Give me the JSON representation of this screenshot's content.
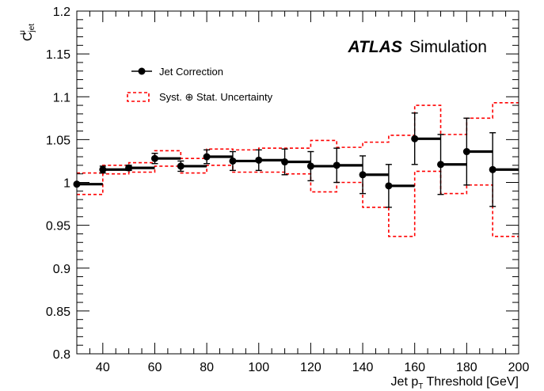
{
  "chart_data": {
    "type": "scatter",
    "xlabel_main": "Jet p",
    "xlabel_sub": "T",
    "xlabel_rest": " Threshold [GeV]",
    "ylabel_main": "C",
    "ylabel_sup": "μ",
    "ylabel_sub": "jet",
    "xlim": [
      30,
      200
    ],
    "ylim": [
      0.8,
      1.2
    ],
    "x_ticks": [
      40,
      60,
      80,
      100,
      120,
      140,
      160,
      180,
      200
    ],
    "x_tick_labels": [
      "40",
      "60",
      "80",
      "100",
      "120",
      "140",
      "160",
      "180",
      "200"
    ],
    "y_ticks": [
      0.8,
      0.85,
      0.9,
      0.95,
      1.0,
      1.05,
      1.1,
      1.15,
      1.2
    ],
    "y_tick_labels": [
      "0.8",
      "0.85",
      "0.9",
      "0.95",
      "1",
      "1.05",
      "1.1",
      "1.15",
      "1.2"
    ],
    "grid": false,
    "legend_position": "top-left",
    "label_bold": "ATLAS",
    "label_text": "Simulation",
    "series": [
      {
        "name": "Jet Correction",
        "color": "#000000",
        "points": [
          {
            "xlow": 30,
            "xhigh": 40,
            "x": 30,
            "y": 0.998,
            "err": 0.0
          },
          {
            "xlow": 40,
            "xhigh": 50,
            "x": 40,
            "y": 1.015,
            "err": 0.004
          },
          {
            "xlow": 50,
            "xhigh": 60,
            "x": 50,
            "y": 1.017,
            "err": 0.003
          },
          {
            "xlow": 60,
            "xhigh": 70,
            "x": 60,
            "y": 1.028,
            "err": 0.006
          },
          {
            "xlow": 70,
            "xhigh": 80,
            "x": 70,
            "y": 1.019,
            "err": 0.006
          },
          {
            "xlow": 80,
            "xhigh": 90,
            "x": 80,
            "y": 1.03,
            "err": 0.008
          },
          {
            "xlow": 90,
            "xhigh": 100,
            "x": 90,
            "y": 1.025,
            "err": 0.011
          },
          {
            "xlow": 100,
            "xhigh": 110,
            "x": 100,
            "y": 1.026,
            "err": 0.012
          },
          {
            "xlow": 110,
            "xhigh": 120,
            "x": 110,
            "y": 1.024,
            "err": 0.015
          },
          {
            "xlow": 120,
            "xhigh": 130,
            "x": 120,
            "y": 1.019,
            "err": 0.017
          },
          {
            "xlow": 130,
            "xhigh": 140,
            "x": 130,
            "y": 1.02,
            "err": 0.02
          },
          {
            "xlow": 140,
            "xhigh": 150,
            "x": 140,
            "y": 1.009,
            "err": 0.022
          },
          {
            "xlow": 150,
            "xhigh": 160,
            "x": 150,
            "y": 0.996,
            "err": 0.025
          },
          {
            "xlow": 160,
            "xhigh": 170,
            "x": 160,
            "y": 1.051,
            "err": 0.03
          },
          {
            "xlow": 170,
            "xhigh": 180,
            "x": 170,
            "y": 1.021,
            "err": 0.035
          },
          {
            "xlow": 180,
            "xhigh": 190,
            "x": 180,
            "y": 1.036,
            "err": 0.039
          },
          {
            "xlow": 190,
            "xhigh": 200,
            "x": 190,
            "y": 1.015,
            "err": 0.043
          }
        ]
      },
      {
        "name": "Syst. ⊕ Stat. Uncertainty",
        "color": "#ff0000",
        "bands": [
          {
            "xlow": 30,
            "xhigh": 40,
            "low": 0.986,
            "high": 1.011
          },
          {
            "xlow": 40,
            "xhigh": 50,
            "low": 1.01,
            "high": 1.02
          },
          {
            "xlow": 50,
            "xhigh": 60,
            "low": 1.012,
            "high": 1.023
          },
          {
            "xlow": 60,
            "xhigh": 70,
            "low": 1.019,
            "high": 1.037
          },
          {
            "xlow": 70,
            "xhigh": 80,
            "low": 1.011,
            "high": 1.028
          },
          {
            "xlow": 80,
            "xhigh": 90,
            "low": 1.02,
            "high": 1.039
          },
          {
            "xlow": 90,
            "xhigh": 100,
            "low": 1.012,
            "high": 1.038
          },
          {
            "xlow": 100,
            "xhigh": 110,
            "low": 1.012,
            "high": 1.04
          },
          {
            "xlow": 110,
            "xhigh": 120,
            "low": 1.01,
            "high": 1.04
          },
          {
            "xlow": 120,
            "xhigh": 130,
            "low": 0.989,
            "high": 1.049
          },
          {
            "xlow": 130,
            "xhigh": 140,
            "low": 1.0,
            "high": 1.041
          },
          {
            "xlow": 140,
            "xhigh": 150,
            "low": 0.971,
            "high": 1.047
          },
          {
            "xlow": 150,
            "xhigh": 160,
            "low": 0.937,
            "high": 1.055
          },
          {
            "xlow": 160,
            "xhigh": 170,
            "low": 1.013,
            "high": 1.09
          },
          {
            "xlow": 170,
            "xhigh": 180,
            "low": 0.987,
            "high": 1.056
          },
          {
            "xlow": 180,
            "xhigh": 190,
            "low": 0.997,
            "high": 1.075
          },
          {
            "xlow": 190,
            "xhigh": 200,
            "low": 0.937,
            "high": 1.093
          }
        ]
      }
    ]
  }
}
